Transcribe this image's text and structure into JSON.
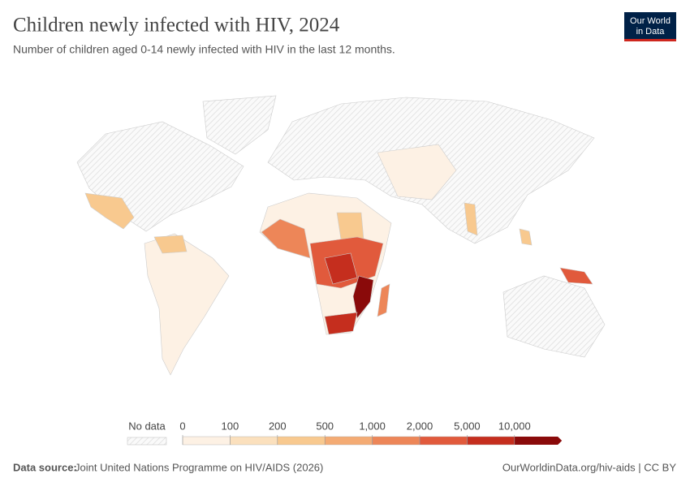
{
  "header": {
    "title": "Children newly infected with HIV, 2024",
    "subtitle": "Number of children aged 0-14 newly infected with HIV in the last 12 months.",
    "logo": [
      "Our World",
      "in Data"
    ]
  },
  "legend": {
    "no_data": "No data",
    "ticks": [
      0,
      100,
      200,
      500,
      {
        "value": 1000,
        "label": "1,000"
      },
      {
        "value": 2000,
        "label": "2,000"
      },
      {
        "value": 5000,
        "label": "5,000"
      },
      {
        "value": 10000,
        "label": "10,000"
      }
    ],
    "colors": [
      "#fdf1e4",
      "#fbe0bd",
      "#f8c98f",
      "#f4ab74",
      "#ed8658",
      "#e15a3c",
      "#c52e1e",
      "#8a0a0a"
    ]
  },
  "footer": {
    "source_label": "Data source:",
    "source": "Joint United Nations Programme on HIV/AIDS (2026)",
    "url": "OurWorldinData.org/hiv-aids | CC BY"
  }
}
